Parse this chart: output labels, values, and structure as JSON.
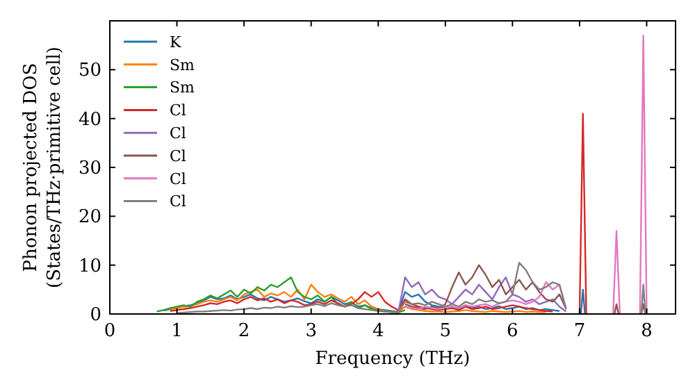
{
  "chart_data": {
    "type": "line",
    "xlabel": "Frequency (THz)",
    "ylabel": "Phonon projected DOS\n(States/THz·primitive cell)",
    "series": [
      {
        "name": "K",
        "color": "#1f77b4",
        "x": [
          0.8,
          0.9,
          1.0,
          1.1,
          1.2,
          1.3,
          1.4,
          1.5,
          1.6,
          1.7,
          1.8,
          1.9,
          2.0,
          2.1,
          2.2,
          2.3,
          2.4,
          2.5,
          2.6,
          2.7,
          2.8,
          2.9,
          3.0,
          3.1,
          3.2,
          3.3,
          3.4,
          3.5,
          3.6,
          3.7,
          3.8,
          3.9,
          4.0,
          4.1,
          4.2,
          4.3,
          4.4,
          4.5,
          4.6,
          4.7,
          4.8,
          4.9,
          5.0,
          5.1,
          5.2,
          5.3,
          5.4,
          5.5,
          5.6,
          5.7,
          5.8,
          5.9,
          6.0,
          6.1,
          6.2,
          6.3,
          6.4,
          6.5,
          6.6,
          6.7,
          6.9,
          7.02,
          7.05,
          7.08
        ],
        "values": [
          0.7,
          1.0,
          1.3,
          1.6,
          1.8,
          2.2,
          2.8,
          3.5,
          3.0,
          3.2,
          3.8,
          3.0,
          3.5,
          4.0,
          3.2,
          2.8,
          3.5,
          3.0,
          2.5,
          2.8,
          3.2,
          2.6,
          2.2,
          3.0,
          2.5,
          3.5,
          2.8,
          2.0,
          2.4,
          1.5,
          1.8,
          1.2,
          1.0,
          0.8,
          0.6,
          0.5,
          4.5,
          3.5,
          4.0,
          2.5,
          1.8,
          1.5,
          1.2,
          1.5,
          1.0,
          1.8,
          1.2,
          1.5,
          1.0,
          1.2,
          1.6,
          1.0,
          1.2,
          1.5,
          1.0,
          1.2,
          0.8,
          1.0,
          0.8,
          0.6,
          null,
          0,
          5,
          0
        ]
      },
      {
        "name": "Sm",
        "color": "#ff7f0e",
        "x": [
          0.9,
          1.0,
          1.1,
          1.2,
          1.3,
          1.4,
          1.5,
          1.6,
          1.7,
          1.8,
          1.9,
          2.0,
          2.1,
          2.2,
          2.3,
          2.4,
          2.5,
          2.6,
          2.7,
          2.8,
          2.9,
          3.0,
          3.1,
          3.2,
          3.3,
          3.4,
          3.5,
          3.6,
          3.7,
          3.8,
          3.9,
          4.0,
          4.1,
          4.2,
          4.3,
          4.4,
          4.5,
          4.6,
          4.7,
          4.8,
          4.9,
          5.0,
          5.1,
          5.2,
          5.3,
          5.4,
          5.5,
          5.6,
          5.7,
          5.8,
          5.9,
          6.0,
          6.1,
          6.2,
          6.3,
          6.4,
          6.5
        ],
        "values": [
          0.9,
          1.2,
          1.5,
          1.6,
          2.0,
          2.5,
          2.8,
          2.5,
          3.0,
          3.5,
          2.8,
          4.0,
          4.5,
          5.0,
          3.5,
          4.2,
          3.8,
          4.5,
          3.5,
          5.0,
          3.0,
          6.0,
          4.5,
          3.5,
          4.0,
          3.2,
          2.5,
          3.5,
          2.0,
          2.8,
          1.5,
          1.0,
          0.6,
          0.4,
          0.5,
          1.5,
          1.0,
          0.8,
          0.6,
          0.5,
          0.5,
          0.4,
          0.5,
          0.6,
          0.8,
          0.6,
          0.5,
          0.4,
          0.6,
          0.5,
          0.4,
          0.5,
          0.6,
          0.4,
          0.5,
          0.4,
          0.4
        ]
      },
      {
        "name": "Sm",
        "color": "#2ca02c",
        "x": [
          0.7,
          0.8,
          0.9,
          1.0,
          1.1,
          1.2,
          1.3,
          1.4,
          1.5,
          1.6,
          1.7,
          1.8,
          1.9,
          2.0,
          2.1,
          2.2,
          2.3,
          2.4,
          2.5,
          2.6,
          2.7,
          2.8,
          2.9,
          3.0,
          3.1,
          3.2,
          3.3,
          3.4,
          3.5,
          3.6,
          3.7,
          3.8,
          3.9,
          4.0,
          4.1,
          4.2,
          4.3,
          4.4
        ],
        "values": [
          0.5,
          0.8,
          1.2,
          1.5,
          1.8,
          1.5,
          2.5,
          3.0,
          3.8,
          3.2,
          4.0,
          4.8,
          3.5,
          5.0,
          4.2,
          5.5,
          4.8,
          6.0,
          5.5,
          6.5,
          7.5,
          4.5,
          3.5,
          3.0,
          3.8,
          2.5,
          3.5,
          2.0,
          1.5,
          2.5,
          1.2,
          1.8,
          1.0,
          0.8,
          0.5,
          0.4,
          0.3,
          0.8
        ]
      },
      {
        "name": "Cl",
        "color": "#d62728",
        "x": [
          0.9,
          1.0,
          1.1,
          1.2,
          1.3,
          1.4,
          1.5,
          1.6,
          1.7,
          1.8,
          1.9,
          2.0,
          2.1,
          2.2,
          2.3,
          2.4,
          2.5,
          2.6,
          2.7,
          2.8,
          2.9,
          3.0,
          3.1,
          3.2,
          3.3,
          3.4,
          3.5,
          3.6,
          3.7,
          3.8,
          3.9,
          4.0,
          4.1,
          4.2,
          4.3,
          4.4,
          4.5,
          4.6,
          4.7,
          4.8,
          4.9,
          5.0,
          5.1,
          5.2,
          5.3,
          5.4,
          5.5,
          5.6,
          5.7,
          5.8,
          5.9,
          6.0,
          6.1,
          6.2,
          6.3,
          6.4,
          6.5,
          6.6,
          6.9,
          7.0,
          7.05,
          7.1
        ],
        "values": [
          0.6,
          0.8,
          1.0,
          1.2,
          1.5,
          1.8,
          2.2,
          2.0,
          2.5,
          2.8,
          2.2,
          3.0,
          3.5,
          2.8,
          3.2,
          2.5,
          3.0,
          2.2,
          2.8,
          2.5,
          1.8,
          2.0,
          2.5,
          2.0,
          2.8,
          2.2,
          1.5,
          2.0,
          3.0,
          4.5,
          3.5,
          4.5,
          2.5,
          1.5,
          0.8,
          3.0,
          2.0,
          1.5,
          1.2,
          1.0,
          0.8,
          1.0,
          1.2,
          0.8,
          1.5,
          1.0,
          1.2,
          1.5,
          1.0,
          1.2,
          1.5,
          1.8,
          1.5,
          1.2,
          1.0,
          0.8,
          0.6,
          0.5,
          null,
          0,
          41,
          0
        ]
      },
      {
        "name": "Cl",
        "color": "#9467bd",
        "x": [
          4.3,
          4.4,
          4.5,
          4.6,
          4.7,
          4.8,
          4.9,
          5.0,
          5.1,
          5.2,
          5.3,
          5.4,
          5.5,
          5.6,
          5.7,
          5.8,
          5.9,
          6.0,
          6.1,
          6.2,
          6.3,
          6.4,
          6.5,
          6.6,
          6.7,
          6.8
        ],
        "values": [
          0.4,
          7.5,
          5.5,
          6.5,
          4.0,
          5.0,
          3.5,
          3.0,
          2.0,
          3.5,
          5.0,
          4.0,
          6.0,
          4.5,
          3.0,
          5.5,
          7.5,
          4.0,
          3.5,
          2.5,
          3.0,
          2.0,
          2.5,
          3.0,
          1.5,
          0.5
        ]
      },
      {
        "name": "Cl",
        "color": "#8c564b",
        "x": [
          4.4,
          4.5,
          4.6,
          4.7,
          4.8,
          4.9,
          5.0,
          5.1,
          5.2,
          5.3,
          5.4,
          5.5,
          5.6,
          5.7,
          5.8,
          5.9,
          6.0,
          6.1,
          6.2,
          6.3,
          6.4,
          6.5,
          6.6,
          6.7,
          6.8,
          7.2,
          7.52,
          7.55,
          7.58,
          7.75,
          7.92,
          7.95,
          7.98
        ],
        "values": [
          2.0,
          1.5,
          1.2,
          1.0,
          1.5,
          1.2,
          2.0,
          5.5,
          8.5,
          6.0,
          7.5,
          10.0,
          8.0,
          5.5,
          7.0,
          4.0,
          5.5,
          7.0,
          5.0,
          6.5,
          4.5,
          3.0,
          2.5,
          4.0,
          1.0,
          null,
          0,
          2,
          0,
          null,
          0,
          2,
          0
        ]
      },
      {
        "name": "Cl",
        "color": "#e377c2",
        "x": [
          4.4,
          4.5,
          4.6,
          4.7,
          4.8,
          4.9,
          5.0,
          5.1,
          5.2,
          5.3,
          5.4,
          5.5,
          5.6,
          5.7,
          5.8,
          5.9,
          6.0,
          6.1,
          6.2,
          6.3,
          6.4,
          6.5,
          6.6,
          6.7,
          6.8,
          7.2,
          7.5,
          7.55,
          7.6,
          7.75,
          7.9,
          7.95,
          8.0
        ],
        "values": [
          1.5,
          1.2,
          1.0,
          1.5,
          1.2,
          1.0,
          1.2,
          1.5,
          1.2,
          1.8,
          1.5,
          1.8,
          2.0,
          1.5,
          2.2,
          2.5,
          2.8,
          2.5,
          2.0,
          2.5,
          3.5,
          6.5,
          5.0,
          6.0,
          1.0,
          null,
          0,
          17,
          0,
          null,
          0,
          57,
          0
        ]
      },
      {
        "name": "Cl",
        "color": "#7f7f7f",
        "x": [
          1.0,
          1.1,
          1.2,
          1.3,
          1.4,
          1.5,
          1.6,
          1.7,
          1.8,
          1.9,
          2.0,
          2.1,
          2.2,
          2.3,
          2.4,
          2.5,
          2.6,
          2.7,
          2.8,
          2.9,
          3.0,
          3.1,
          3.2,
          3.3,
          3.4,
          3.5,
          3.6,
          3.7,
          3.8,
          3.9,
          4.0,
          4.1,
          4.2,
          4.3,
          4.4,
          4.5,
          4.6,
          4.7,
          4.8,
          4.9,
          5.0,
          5.1,
          5.2,
          5.3,
          5.4,
          5.5,
          5.6,
          5.7,
          5.8,
          5.9,
          6.0,
          6.1,
          6.2,
          6.3,
          6.4,
          6.5,
          6.6,
          6.7,
          6.8,
          7.5,
          7.92,
          7.95,
          7.98
        ],
        "values": [
          0.2,
          0.3,
          0.4,
          0.5,
          0.5,
          0.6,
          0.7,
          0.8,
          0.7,
          0.9,
          1.0,
          1.2,
          1.0,
          1.3,
          1.2,
          1.5,
          1.3,
          1.6,
          1.4,
          1.5,
          1.8,
          2.0,
          1.6,
          2.2,
          1.8,
          1.5,
          1.8,
          1.2,
          1.0,
          0.8,
          0.6,
          0.5,
          0.4,
          0.4,
          2.5,
          2.0,
          2.2,
          1.8,
          2.5,
          2.0,
          1.5,
          2.0,
          1.5,
          2.5,
          2.0,
          3.0,
          2.5,
          2.8,
          2.2,
          2.5,
          4.0,
          10.5,
          9.0,
          6.5,
          5.0,
          5.5,
          6.5,
          6.0,
          1.0,
          null,
          0,
          6,
          0
        ]
      }
    ],
    "xlim": [
      0,
      8.43
    ],
    "xticks": [
      0,
      1,
      2,
      3,
      4,
      5,
      6,
      7,
      8
    ],
    "ylim": [
      0,
      60
    ],
    "yticks": [
      0,
      10,
      20,
      30,
      40,
      50
    ],
    "legend": "top left",
    "grid": false,
    "line_style": "solid"
  }
}
